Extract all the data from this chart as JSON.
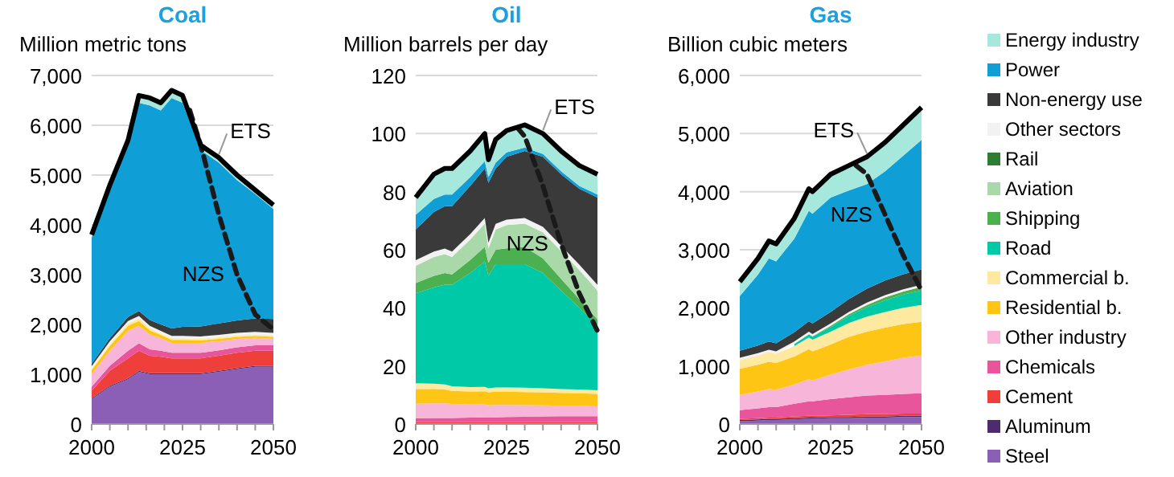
{
  "chart_data": [
    {
      "type": "area",
      "title": "Coal",
      "ylabel": "Million metric tons",
      "annotations": [
        "ETS"
      ],
      "stacked": true,
      "grid": "y",
      "legend": false,
      "x": [
        2000,
        2005,
        2010,
        2013,
        2016,
        2019,
        2022,
        2025,
        2030,
        2035,
        2040,
        2045,
        2050
      ],
      "xlim": [
        2000,
        2050
      ],
      "xticks": [
        2000,
        {
          "value": 2005,
          "label": null
        },
        {
          "value": 2010,
          "label": null
        },
        {
          "value": 2015,
          "label": null
        },
        {
          "value": 2020,
          "label": null
        },
        2025,
        {
          "value": 2030,
          "label": null
        },
        {
          "value": 2035,
          "label": null
        },
        {
          "value": 2040,
          "label": null
        },
        {
          "value": 2045,
          "label": null
        },
        2050
      ],
      "ylim": [
        0,
        7000
      ],
      "yticks": [
        0,
        {
          "value": 1000,
          "label": "1,000"
        },
        {
          "value": 2000,
          "label": "2,000"
        },
        {
          "value": 3000,
          "label": "3,000"
        },
        {
          "value": 4000,
          "label": "4,000"
        },
        {
          "value": 5000,
          "label": "5,000"
        },
        {
          "value": 6000,
          "label": "6,000"
        },
        {
          "value": 7000,
          "label": "7,000"
        }
      ],
      "series": [
        {
          "color": "#8a5fb5",
          "values": [
            500,
            750,
            900,
            1050,
            1000,
            1000,
            1000,
            1000,
            1000,
            1050,
            1100,
            1150,
            1150
          ]
        },
        {
          "color": "#4b2c6e",
          "values": [
            20,
            20,
            20,
            20,
            20,
            20,
            20,
            20,
            20,
            20,
            20,
            20,
            20
          ]
        },
        {
          "color": "#ef3f3a",
          "values": [
            150,
            300,
            400,
            400,
            350,
            330,
            300,
            300,
            300,
            300,
            310,
            300,
            300
          ]
        },
        {
          "color": "#e8559a",
          "values": [
            80,
            100,
            150,
            150,
            130,
            120,
            110,
            110,
            110,
            110,
            110,
            110,
            110
          ]
        },
        {
          "color": "#f7b6d9",
          "values": [
            250,
            300,
            400,
            350,
            300,
            250,
            200,
            200,
            200,
            180,
            170,
            150,
            130
          ]
        },
        {
          "color": "#fec514",
          "values": [
            80,
            100,
            100,
            100,
            80,
            70,
            60,
            60,
            50,
            50,
            40,
            40,
            40
          ]
        },
        {
          "color": "#fde9a0",
          "values": [
            30,
            40,
            50,
            50,
            40,
            30,
            30,
            30,
            30,
            30,
            30,
            30,
            30
          ]
        },
        {
          "color": "#f2f2f2",
          "values": [
            50,
            50,
            50,
            50,
            50,
            50,
            50,
            50,
            50,
            50,
            50,
            50,
            50
          ]
        },
        {
          "color": "#3a3a3a",
          "values": [
            50,
            60,
            80,
            100,
            120,
            130,
            150,
            180,
            200,
            230,
            250,
            270,
            280
          ]
        },
        {
          "color": "#0f9ed5",
          "values": [
            2540,
            3000,
            3450,
            4180,
            4310,
            4300,
            4630,
            4500,
            3540,
            3230,
            2820,
            2500,
            2210
          ]
        },
        {
          "color": "#a6e8dc",
          "values": [
            50,
            80,
            100,
            150,
            150,
            150,
            150,
            150,
            100,
            100,
            100,
            80,
            80
          ]
        },
        {
          "name": "NZS",
          "type": "line",
          "color": "#1a1a1a",
          "line_style": "dashed",
          "x": [
            2027,
            2030,
            2035,
            2040,
            2045,
            2050
          ],
          "values": [
            6300,
            5600,
            4200,
            3000,
            2200,
            1900
          ]
        }
      ]
    },
    {
      "type": "area",
      "title": "Oil",
      "ylabel": "Million barrels per day",
      "annotations": [
        "ETS"
      ],
      "stacked": true,
      "grid": "y",
      "legend": false,
      "x": [
        2000,
        2005,
        2008,
        2010,
        2015,
        2019,
        2020,
        2022,
        2025,
        2030,
        2035,
        2040,
        2045,
        2050
      ],
      "xlim": [
        2000,
        2050
      ],
      "xticks": [
        2000,
        {
          "value": 2005,
          "label": null
        },
        {
          "value": 2010,
          "label": null
        },
        {
          "value": 2015,
          "label": null
        },
        {
          "value": 2020,
          "label": null
        },
        2025,
        {
          "value": 2030,
          "label": null
        },
        {
          "value": 2035,
          "label": null
        },
        {
          "value": 2040,
          "label": null
        },
        {
          "value": 2045,
          "label": null
        },
        2050
      ],
      "ylim": [
        0,
        120
      ],
      "yticks": [
        0,
        20,
        40,
        60,
        80,
        100,
        120
      ],
      "series": [
        {
          "color": "#ef3f3a",
          "values": [
            0.7,
            0.7,
            0.7,
            0.7,
            0.7,
            0.7,
            0.7,
            0.7,
            0.7,
            0.7,
            0.7,
            0.7,
            0.7,
            0.7
          ]
        },
        {
          "color": "#e8559a",
          "values": [
            1.3,
            1.4,
            1.4,
            1.4,
            1.5,
            1.6,
            1.5,
            1.6,
            1.7,
            1.8,
            1.9,
            2,
            2,
            2
          ]
        },
        {
          "color": "#f7b6d9",
          "values": [
            5,
            5,
            5,
            4.8,
            4.5,
            4.5,
            4.2,
            4.3,
            4.2,
            4,
            3.8,
            3.6,
            3.5,
            3.4
          ]
        },
        {
          "color": "#fec514",
          "values": [
            5,
            5,
            4.8,
            4.5,
            4.5,
            4.5,
            4.5,
            4.5,
            4.5,
            4.5,
            4.5,
            4.4,
            4.4,
            4.3
          ]
        },
        {
          "color": "#fde9a0",
          "values": [
            2,
            1.8,
            1.7,
            1.6,
            1.5,
            1.5,
            1.4,
            1.5,
            1.5,
            1.5,
            1.4,
            1.3,
            1.3,
            1.2
          ]
        },
        {
          "color": "#00c9a7",
          "values": [
            31,
            33.1,
            34.4,
            35,
            39.3,
            43.2,
            38.7,
            42.4,
            42.4,
            42.5,
            39.7,
            34,
            28.1,
            22.4
          ]
        },
        {
          "color": "#4caf50",
          "values": [
            3.5,
            4,
            4,
            3.5,
            4.5,
            5,
            4.5,
            5,
            5.5,
            6,
            5,
            4,
            3,
            2
          ]
        },
        {
          "color": "#a9d8a9",
          "values": [
            6,
            6.5,
            6.5,
            6,
            7,
            8,
            5,
            7,
            8,
            8,
            9,
            9.5,
            10,
            10
          ]
        },
        {
          "color": "#f2f2f2",
          "values": [
            1.9,
            1.9,
            1.9,
            1.9,
            1.9,
            1.9,
            1.9,
            1.9,
            1.9,
            1.9,
            1.9,
            1.9,
            1.9,
            1.9
          ]
        },
        {
          "color": "#3a3a3a",
          "values": [
            10.6,
            13.6,
            14.6,
            15.6,
            16.6,
            17.1,
            20.6,
            19.1,
            21.6,
            23.1,
            24.1,
            24.6,
            26.1,
            30.1
          ]
        },
        {
          "color": "#0f9ed5",
          "values": [
            5,
            4.5,
            4,
            4,
            3,
            2.5,
            2,
            2,
            1.5,
            1.2,
            1,
            1,
            1,
            1
          ]
        },
        {
          "color": "#a6e8dc",
          "values": [
            6,
            8.5,
            9,
            9,
            9,
            9.5,
            6,
            8,
            7.5,
            7.8,
            7,
            7,
            7,
            7
          ]
        },
        {
          "name": "NZS",
          "type": "line",
          "color": "#1a1a1a",
          "line_style": "dashed",
          "x": [
            2028,
            2030,
            2035,
            2040,
            2045,
            2050
          ],
          "values": [
            102,
            99,
            82,
            62,
            45,
            32
          ]
        }
      ]
    },
    {
      "type": "area",
      "title": "Gas",
      "ylabel": "Billion cubic meters",
      "annotations": [
        "ETS"
      ],
      "stacked": true,
      "grid": "y",
      "legend": "right",
      "x": [
        2000,
        2005,
        2008,
        2010,
        2015,
        2019,
        2020,
        2025,
        2030,
        2035,
        2040,
        2045,
        2050
      ],
      "xlim": [
        2000,
        2050
      ],
      "xticks": [
        2000,
        {
          "value": 2005,
          "label": null
        },
        {
          "value": 2010,
          "label": null
        },
        {
          "value": 2015,
          "label": null
        },
        {
          "value": 2020,
          "label": null
        },
        2025,
        {
          "value": 2030,
          "label": null
        },
        {
          "value": 2035,
          "label": null
        },
        {
          "value": 2040,
          "label": null
        },
        {
          "value": 2045,
          "label": null
        },
        2050
      ],
      "ylim": [
        0,
        6000
      ],
      "yticks": [
        0,
        {
          "value": 1000,
          "label": "1,000"
        },
        {
          "value": 2000,
          "label": "2,000"
        },
        {
          "value": 3000,
          "label": "3,000"
        },
        {
          "value": 4000,
          "label": "4,000"
        },
        {
          "value": 5000,
          "label": "5,000"
        },
        {
          "value": 6000,
          "label": "6,000"
        }
      ],
      "series": [
        {
          "name": "Steel",
          "color": "#8a5fb5",
          "values": [
            50,
            60,
            70,
            70,
            80,
            90,
            90,
            100,
            100,
            110,
            110,
            120,
            120
          ]
        },
        {
          "name": "Aluminum",
          "color": "#4b2c6e",
          "values": [
            20,
            20,
            20,
            20,
            20,
            20,
            20,
            20,
            20,
            20,
            20,
            20,
            20
          ]
        },
        {
          "name": "Cement",
          "color": "#ef3f3a",
          "values": [
            20,
            20,
            20,
            20,
            30,
            30,
            30,
            30,
            40,
            40,
            40,
            40,
            40
          ]
        },
        {
          "name": "Chemicals",
          "color": "#e8559a",
          "values": [
            150,
            170,
            180,
            180,
            220,
            250,
            250,
            280,
            300,
            320,
            330,
            340,
            350
          ]
        },
        {
          "name": "Other industry",
          "color": "#f7b6d9",
          "values": [
            260,
            290,
            310,
            300,
            330,
            380,
            360,
            420,
            480,
            530,
            580,
            620,
            650
          ]
        },
        {
          "name": "Residential b.",
          "color": "#fec514",
          "values": [
            450,
            460,
            470,
            460,
            480,
            520,
            500,
            520,
            560,
            570,
            580,
            580,
            580
          ]
        },
        {
          "name": "Commercial b.",
          "color": "#fde9a0",
          "values": [
            150,
            160,
            170,
            160,
            180,
            200,
            200,
            220,
            240,
            260,
            270,
            280,
            290
          ]
        },
        {
          "name": "Road",
          "color": "#00c9a7",
          "values": [
            null,
            null,
            null,
            null,
            40,
            50,
            50,
            80,
            120,
            160,
            200,
            230,
            250
          ]
        },
        {
          "name": "Shipping",
          "color": "#4caf50",
          "values": [
            null,
            null,
            null,
            null,
            null,
            10,
            10,
            20,
            30,
            40,
            50,
            50,
            60
          ]
        },
        {
          "name": "Aviation",
          "color": "#a9d8a9",
          "values": [
            null,
            null,
            null,
            null,
            null,
            null,
            null,
            null,
            null,
            null,
            null,
            null,
            null
          ]
        },
        {
          "name": "Rail",
          "color": "#2e7d32",
          "values": [
            null,
            null,
            null,
            null,
            null,
            null,
            null,
            null,
            null,
            null,
            null,
            null,
            null
          ]
        },
        {
          "name": "Other sectors",
          "color": "#f2f2f2",
          "values": [
            40,
            40,
            40,
            40,
            40,
            40,
            40,
            40,
            40,
            40,
            40,
            40,
            40
          ]
        },
        {
          "name": "Non-energy use",
          "color": "#3a3a3a",
          "values": [
            120,
            130,
            140,
            140,
            160,
            180,
            180,
            200,
            220,
            240,
            250,
            260,
            260
          ]
        },
        {
          "name": "Power",
          "color": "#0f9ed5",
          "values": [
            940,
            1220,
            1430,
            1410,
            1610,
            1900,
            1890,
            1970,
            1870,
            1800,
            1880,
            2040,
            2230
          ]
        },
        {
          "name": "Energy industry",
          "color": "#a6e8dc",
          "values": [
            250,
            280,
            300,
            300,
            350,
            380,
            380,
            400,
            430,
            470,
            500,
            530,
            560
          ]
        },
        {
          "name": "NZS",
          "type": "line",
          "color": "#1a1a1a",
          "line_style": "dashed",
          "x": [
            2032,
            2035,
            2040,
            2045,
            2050
          ],
          "values": [
            4450,
            4300,
            3600,
            2900,
            2300
          ]
        }
      ]
    }
  ]
}
